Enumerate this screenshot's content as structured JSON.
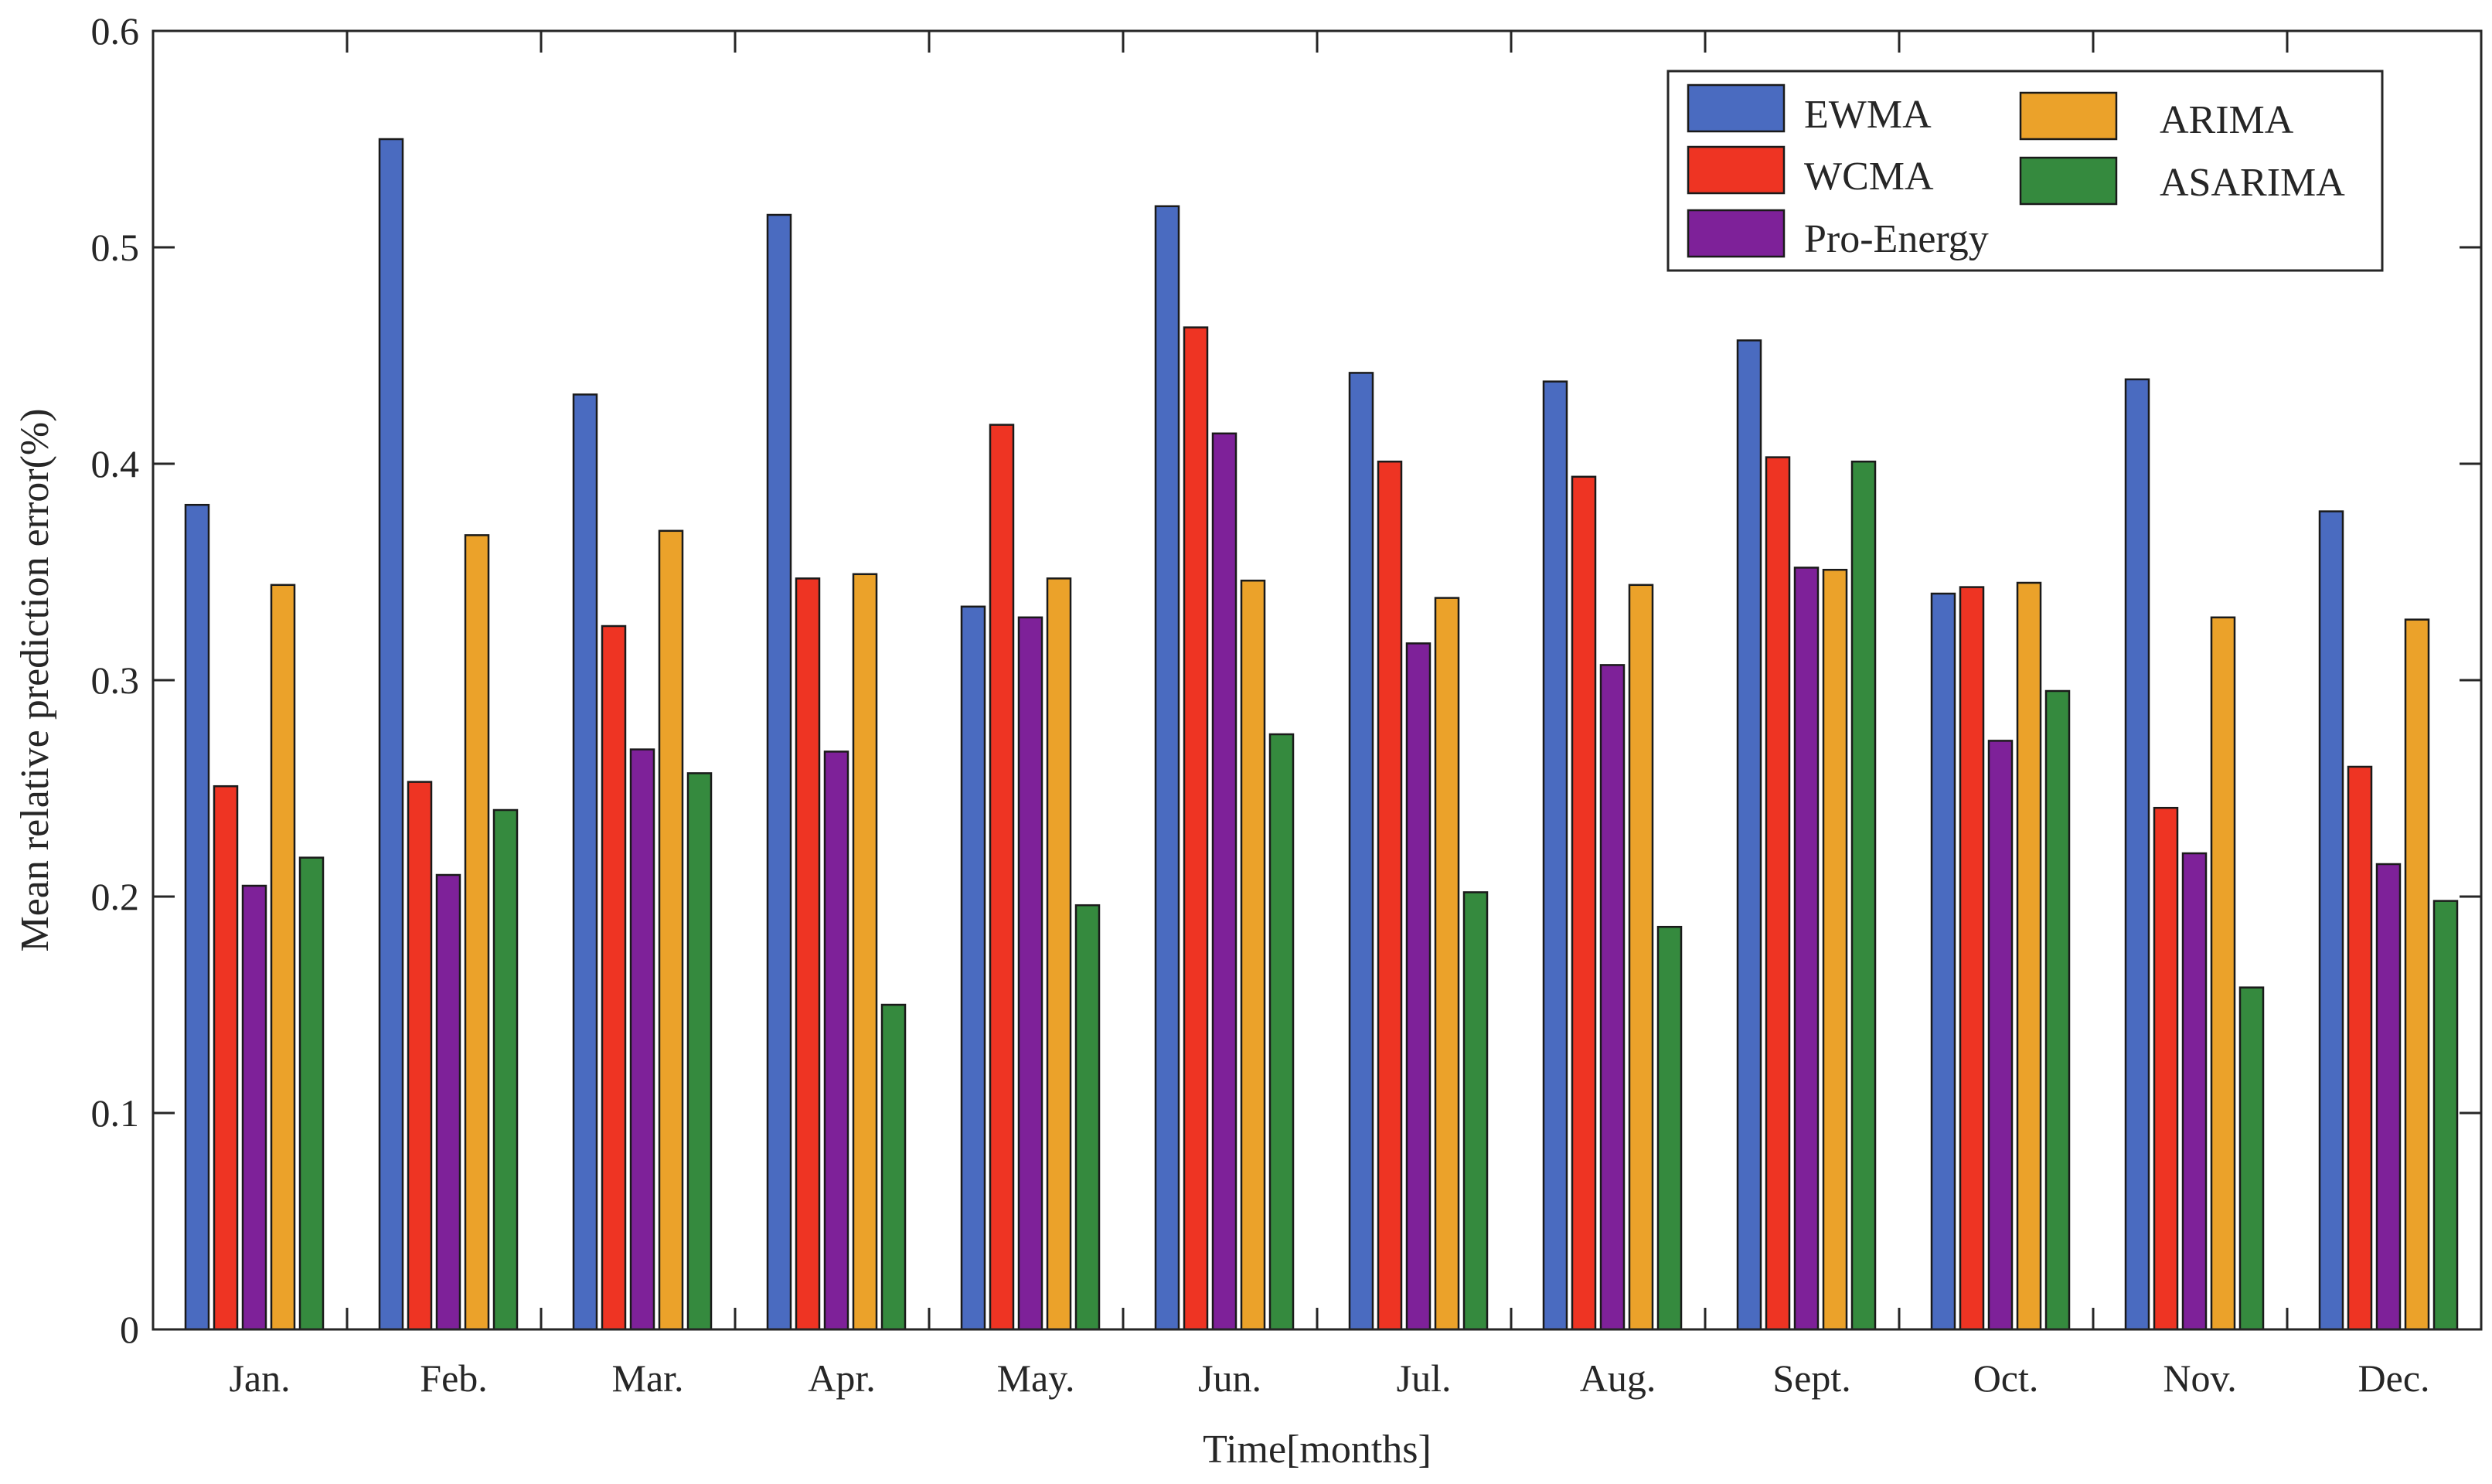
{
  "chart_data": {
    "type": "bar",
    "title": "",
    "xlabel": "Time[months]",
    "ylabel": "Mean relative prediction error(%)",
    "ylim": [
      0,
      0.6
    ],
    "yticks": [
      "0",
      "0.1",
      "0.2",
      "0.3",
      "0.4",
      "0.5",
      "0.6"
    ],
    "categories": [
      "Jan.",
      "Feb.",
      "Mar.",
      "Apr.",
      "May.",
      "Jun.",
      "Jul.",
      "Aug.",
      "Sept.",
      "Oct.",
      "Nov.",
      "Dec."
    ],
    "series": [
      {
        "name": "EWMA",
        "color": "#4a6bc0",
        "values": [
          0.381,
          0.55,
          0.432,
          0.515,
          0.334,
          0.519,
          0.442,
          0.438,
          0.457,
          0.34,
          0.439,
          0.378
        ]
      },
      {
        "name": "WCMA",
        "color": "#ee3423",
        "values": [
          0.251,
          0.253,
          0.325,
          0.347,
          0.418,
          0.463,
          0.401,
          0.394,
          0.403,
          0.343,
          0.241,
          0.26
        ]
      },
      {
        "name": "Pro-Energy",
        "color": "#7e2199",
        "values": [
          0.205,
          0.21,
          0.268,
          0.267,
          0.329,
          0.414,
          0.317,
          0.307,
          0.352,
          0.272,
          0.22,
          0.215
        ]
      },
      {
        "name": "ARIMA",
        "color": "#eba22a",
        "values": [
          0.344,
          0.367,
          0.369,
          0.349,
          0.347,
          0.346,
          0.338,
          0.344,
          0.351,
          0.345,
          0.329,
          0.328
        ]
      },
      {
        "name": "ASARIMA",
        "color": "#358a3e",
        "values": [
          0.218,
          0.24,
          0.257,
          0.15,
          0.196,
          0.275,
          0.202,
          0.186,
          0.401,
          0.295,
          0.158,
          0.198
        ]
      }
    ],
    "grid": false,
    "legend_position": "top-right"
  }
}
